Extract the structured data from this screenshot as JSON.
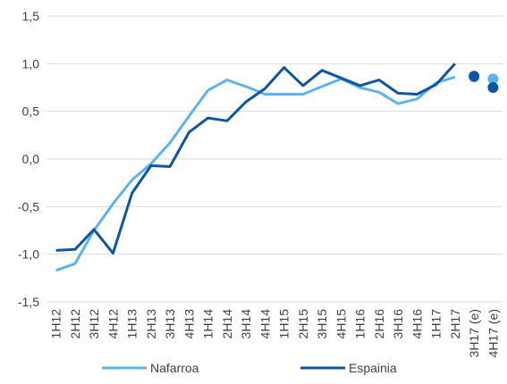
{
  "chart_data": {
    "type": "line",
    "categories": [
      "1H12",
      "2H12",
      "3H12",
      "4H12",
      "1H13",
      "2H13",
      "3H13",
      "4H13",
      "1H14",
      "2H14",
      "3H14",
      "4H14",
      "1H15",
      "2H15",
      "3H15",
      "4H15",
      "1H16",
      "2H16",
      "3H16",
      "4H16",
      "1H17",
      "2H17",
      "3H17 (e)",
      "4H17 (e)"
    ],
    "yticks": [
      "-1,5",
      "-1,0",
      "-0,5",
      "0,0",
      "0,5",
      "1,0",
      "1,5"
    ],
    "ylim": [
      -1.5,
      1.5
    ],
    "grid": "horizontal",
    "legend": "bottom",
    "series": [
      {
        "name": "Nafarroa",
        "color": "#5BB4F0",
        "values": [
          -1.17,
          -1.1,
          -0.75,
          -0.47,
          -0.22,
          -0.05,
          0.17,
          0.45,
          0.72,
          0.83,
          0.76,
          0.68,
          0.68,
          0.68,
          0.76,
          0.84,
          0.75,
          0.7,
          0.58,
          0.63,
          0.8,
          0.86,
          null,
          null
        ],
        "forecast": [
          0.86,
          0.84
        ]
      },
      {
        "name": "Espainia",
        "color": "#0E56A1",
        "values": [
          -0.96,
          -0.95,
          -0.74,
          -0.99,
          -0.36,
          -0.07,
          -0.08,
          0.28,
          0.43,
          0.4,
          0.6,
          0.74,
          0.96,
          0.77,
          0.93,
          0.85,
          0.77,
          0.83,
          0.69,
          0.68,
          0.78,
          1.0,
          null,
          null
        ],
        "forecast": [
          0.87,
          0.75
        ]
      }
    ]
  }
}
